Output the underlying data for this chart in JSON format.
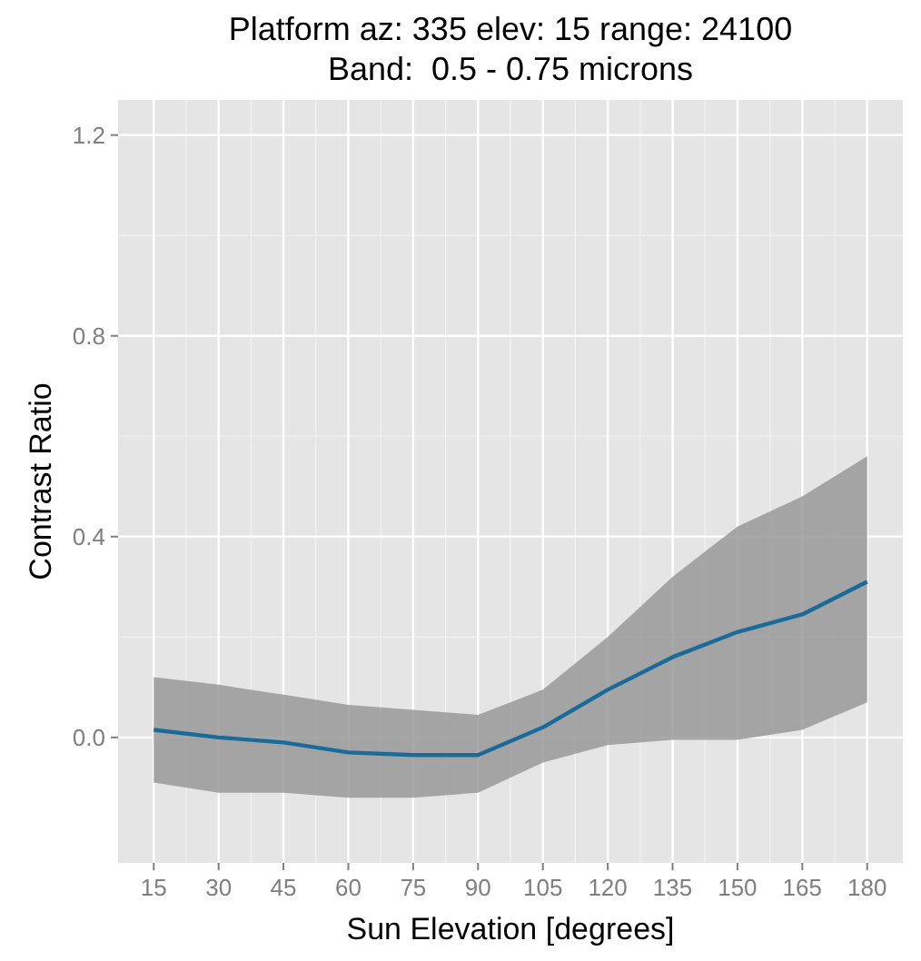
{
  "chart_data": {
    "type": "line",
    "title": "Platform az: 335 elev: 15 range: 24100\nBand:  0.5 - 0.75 microns",
    "xlabel": "Sun Elevation [degrees]",
    "ylabel": "Contrast Ratio",
    "x": [
      15,
      30,
      45,
      60,
      75,
      90,
      105,
      120,
      135,
      150,
      165,
      180
    ],
    "series": [
      {
        "color": "#1b6b9a",
        "values": [
          0.015,
          0.0,
          -0.01,
          -0.03,
          -0.035,
          -0.035,
          0.02,
          0.095,
          0.16,
          0.21,
          0.245,
          0.31
        ],
        "lower": [
          -0.09,
          -0.11,
          -0.11,
          -0.12,
          -0.12,
          -0.11,
          -0.05,
          -0.015,
          -0.005,
          -0.005,
          0.015,
          0.07
        ],
        "upper": [
          0.12,
          0.105,
          0.085,
          0.065,
          0.055,
          0.045,
          0.095,
          0.2,
          0.32,
          0.42,
          0.48,
          0.56
        ]
      }
    ],
    "xlim": [
      6.75,
      188.25
    ],
    "xticks": [
      15,
      30,
      45,
      60,
      75,
      90,
      105,
      120,
      135,
      150,
      165,
      180
    ],
    "ylim": [
      -0.25,
      1.27
    ],
    "yticks": [
      {
        "value": 0,
        "label": "0.0"
      },
      0.4,
      0.8,
      1.2
    ],
    "grid": true,
    "marker": "none",
    "line_style": "solid"
  }
}
